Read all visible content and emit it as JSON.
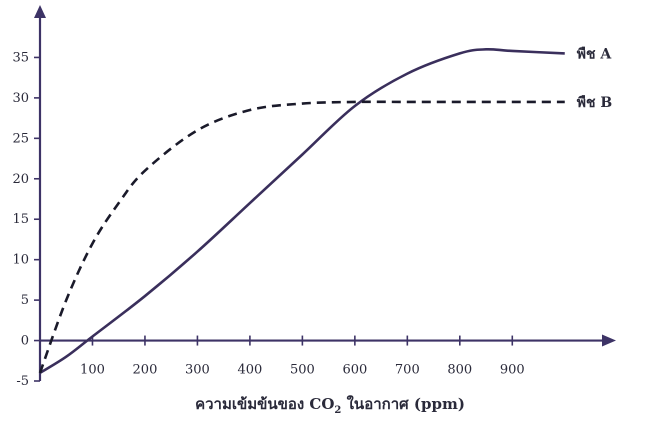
{
  "chart_data": {
    "type": "line",
    "title": "",
    "xlabel_main": "ความเข้มข้นของ CO",
    "xlabel_sub": "2",
    "xlabel_tail": " ในอากาศ (ppm)",
    "ylabel": "",
    "xlim": [
      0,
      1050
    ],
    "ylim": [
      -5,
      40
    ],
    "xticks": [
      100,
      200,
      300,
      400,
      500,
      600,
      700,
      800,
      900
    ],
    "yticks": [
      -5,
      0,
      5,
      10,
      15,
      20,
      25,
      30,
      35
    ],
    "grid": false,
    "legend": "none",
    "axis_color": "#3d3366",
    "series": [
      {
        "name": "พืช A",
        "style": "solid",
        "color": "#3a2f5c",
        "x": [
          0,
          50,
          100,
          200,
          300,
          400,
          500,
          600,
          700,
          800,
          850,
          900,
          1000
        ],
        "y": [
          -4,
          -2,
          0.5,
          5.5,
          11,
          17,
          23,
          29,
          33,
          35.5,
          36,
          35.8,
          35.5
        ]
      },
      {
        "name": "พืช B",
        "style": "dashed",
        "color": "#1a1a2a",
        "x": [
          0,
          50,
          100,
          150,
          200,
          300,
          400,
          500,
          600,
          700,
          800,
          900,
          1000
        ],
        "y": [
          -4,
          5,
          12,
          17,
          21,
          26,
          28.5,
          29.3,
          29.5,
          29.5,
          29.5,
          29.5,
          29.5
        ]
      }
    ]
  }
}
